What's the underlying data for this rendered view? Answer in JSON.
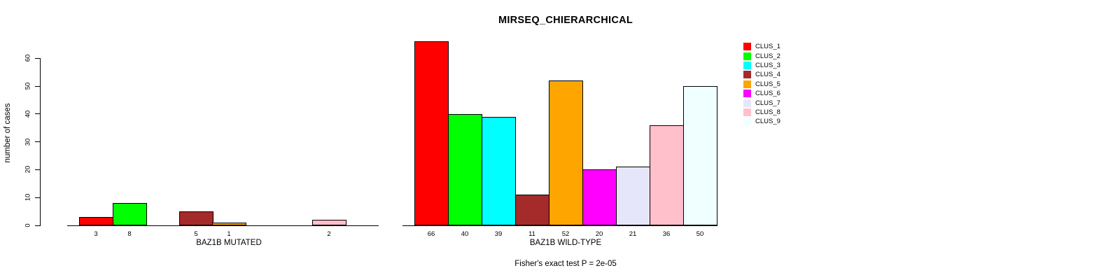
{
  "figure": {
    "title": "MIRSEQ_CHIERARCHICAL",
    "ylabel": "number of cases",
    "footnote": "Fisher's exact test P = 2e-05"
  },
  "axis": {
    "y_ticks": [
      0,
      10,
      20,
      30,
      40,
      50,
      60
    ]
  },
  "legend": {
    "items": [
      {
        "label": "CLUS_1",
        "color": "#FF0000"
      },
      {
        "label": "CLUS_2",
        "color": "#00FF00"
      },
      {
        "label": "CLUS_3",
        "color": "#00FFFF"
      },
      {
        "label": "CLUS_4",
        "color": "#A52A2A"
      },
      {
        "label": "CLUS_5",
        "color": "#FFA500"
      },
      {
        "label": "CLUS_6",
        "color": "#FF00FF"
      },
      {
        "label": "CLUS_7",
        "color": "#E6E6FA"
      },
      {
        "label": "CLUS_8",
        "color": "#FFC0CB"
      },
      {
        "label": "CLUS_9",
        "color": "#F0FFFF"
      }
    ]
  },
  "chart_data": [
    {
      "type": "bar",
      "title": "MIRSEQ_CHIERARCHICAL",
      "xlabel": "BAZ1B MUTATED",
      "ylabel": "number of cases",
      "categories": [
        "CLUS_1",
        "CLUS_2",
        "CLUS_3",
        "CLUS_4",
        "CLUS_5",
        "CLUS_6",
        "CLUS_7",
        "CLUS_8",
        "CLUS_9"
      ],
      "values": [
        3,
        8,
        0,
        5,
        1,
        0,
        0,
        2,
        0
      ],
      "bar_labels": [
        "3",
        "8",
        "",
        "5",
        "1",
        "",
        "",
        "2",
        ""
      ],
      "colors": [
        "#FF0000",
        "#00FF00",
        "#00FFFF",
        "#A52A2A",
        "#FFA500",
        "#FF00FF",
        "#E6E6FA",
        "#FFC0CB",
        "#F0FFFF"
      ],
      "ylim": [
        0,
        66
      ],
      "grid": false,
      "legend_position": "right"
    },
    {
      "type": "bar",
      "title": "MIRSEQ_CHIERARCHICAL",
      "xlabel": "BAZ1B WILD-TYPE",
      "ylabel": "number of cases",
      "categories": [
        "CLUS_1",
        "CLUS_2",
        "CLUS_3",
        "CLUS_4",
        "CLUS_5",
        "CLUS_6",
        "CLUS_7",
        "CLUS_8",
        "CLUS_9"
      ],
      "values": [
        66,
        40,
        39,
        11,
        52,
        20,
        21,
        36,
        50
      ],
      "bar_labels": [
        "66",
        "40",
        "39",
        "11",
        "52",
        "20",
        "21",
        "36",
        "50"
      ],
      "colors": [
        "#FF0000",
        "#00FF00",
        "#00FFFF",
        "#A52A2A",
        "#FFA500",
        "#FF00FF",
        "#E6E6FA",
        "#FFC0CB",
        "#F0FFFF"
      ],
      "ylim": [
        0,
        66
      ],
      "grid": false,
      "legend_position": "right"
    }
  ]
}
